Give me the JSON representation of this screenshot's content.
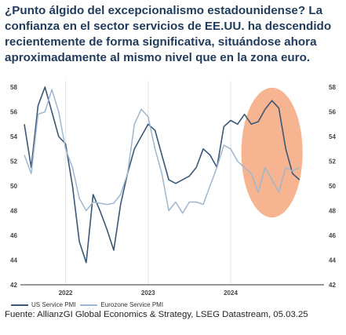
{
  "title_lines": [
    "¿Punto álgido del excepcionalismo estadounidense? La",
    "confianza en el sector servicios de EE.UU. ha descendido",
    "recientemente de forma significativa, situándose ahora",
    "aproximadamente al mismo nivel que en la zona euro."
  ],
  "source": "Fuente: AllianzGI Global Economics & Strategy, LSEG Datastream, 05.03.25",
  "colors": {
    "us": "#3b5878",
    "ez": "#9fb6cf",
    "highlight": "#f4a77c",
    "grid": "#e3e3e3",
    "title": "#1f3a5a"
  },
  "chart_data": {
    "type": "line",
    "x": [
      "2021-07",
      "2021-08",
      "2021-09",
      "2021-10",
      "2021-11",
      "2021-12",
      "2022-01",
      "2022-02",
      "2022-03",
      "2022-04",
      "2022-05",
      "2022-06",
      "2022-07",
      "2022-08",
      "2022-09",
      "2022-10",
      "2022-11",
      "2022-12",
      "2023-01",
      "2023-02",
      "2023-03",
      "2023-04",
      "2023-05",
      "2023-06",
      "2023-07",
      "2023-08",
      "2023-09",
      "2023-10",
      "2023-11",
      "2023-12",
      "2024-01",
      "2024-02",
      "2024-03",
      "2024-04",
      "2024-05",
      "2024-06",
      "2024-07",
      "2024-08",
      "2024-09",
      "2024-10",
      "2024-11",
      "2024-12",
      "2025-01",
      "2025-02"
    ],
    "x_tick_labels": [
      "2022",
      "2023",
      "2024"
    ],
    "x_tick_positions": [
      "2022-01",
      "2023-01",
      "2024-01"
    ],
    "series": [
      {
        "name": "US Service PMI",
        "values": [
          55.0,
          51.5,
          56.5,
          58.0,
          56.0,
          54.0,
          53.4,
          50.0,
          45.5,
          43.8,
          49.3,
          48.0,
          46.5,
          44.8,
          48.5,
          51.0,
          53.0,
          54.0,
          55.0,
          54.5,
          52.5,
          50.5,
          50.2,
          50.5,
          50.8,
          51.5,
          53.0,
          52.5,
          51.5,
          54.8,
          55.3,
          55.0,
          55.8,
          55.0,
          55.2,
          56.2,
          56.9,
          56.3,
          53.0,
          51.0,
          50.5,
          null,
          null,
          null
        ]
      },
      {
        "name": "Eurozone Service PMI",
        "values": [
          52.5,
          51.0,
          55.8,
          56.0,
          57.8,
          56.0,
          53.0,
          51.5,
          49.0,
          48.0,
          48.7,
          48.6,
          48.5,
          48.6,
          49.3,
          51.0,
          55.0,
          56.2,
          55.6,
          53.0,
          51.0,
          48.0,
          48.7,
          47.8,
          48.7,
          48.7,
          48.5,
          50.0,
          51.5,
          53.3,
          53.0,
          52.0,
          51.5,
          51.0,
          49.5,
          51.5,
          50.5,
          49.5,
          51.5,
          51.2,
          51.5,
          null,
          null,
          null
        ]
      }
    ],
    "ylim": [
      42,
      58
    ],
    "y_ticks": [
      42,
      44,
      46,
      48,
      50,
      52,
      54,
      56,
      58
    ],
    "grid": "vertical",
    "legend": "bottom-left",
    "highlight_range": [
      "2024-03",
      "2024-11"
    ]
  }
}
